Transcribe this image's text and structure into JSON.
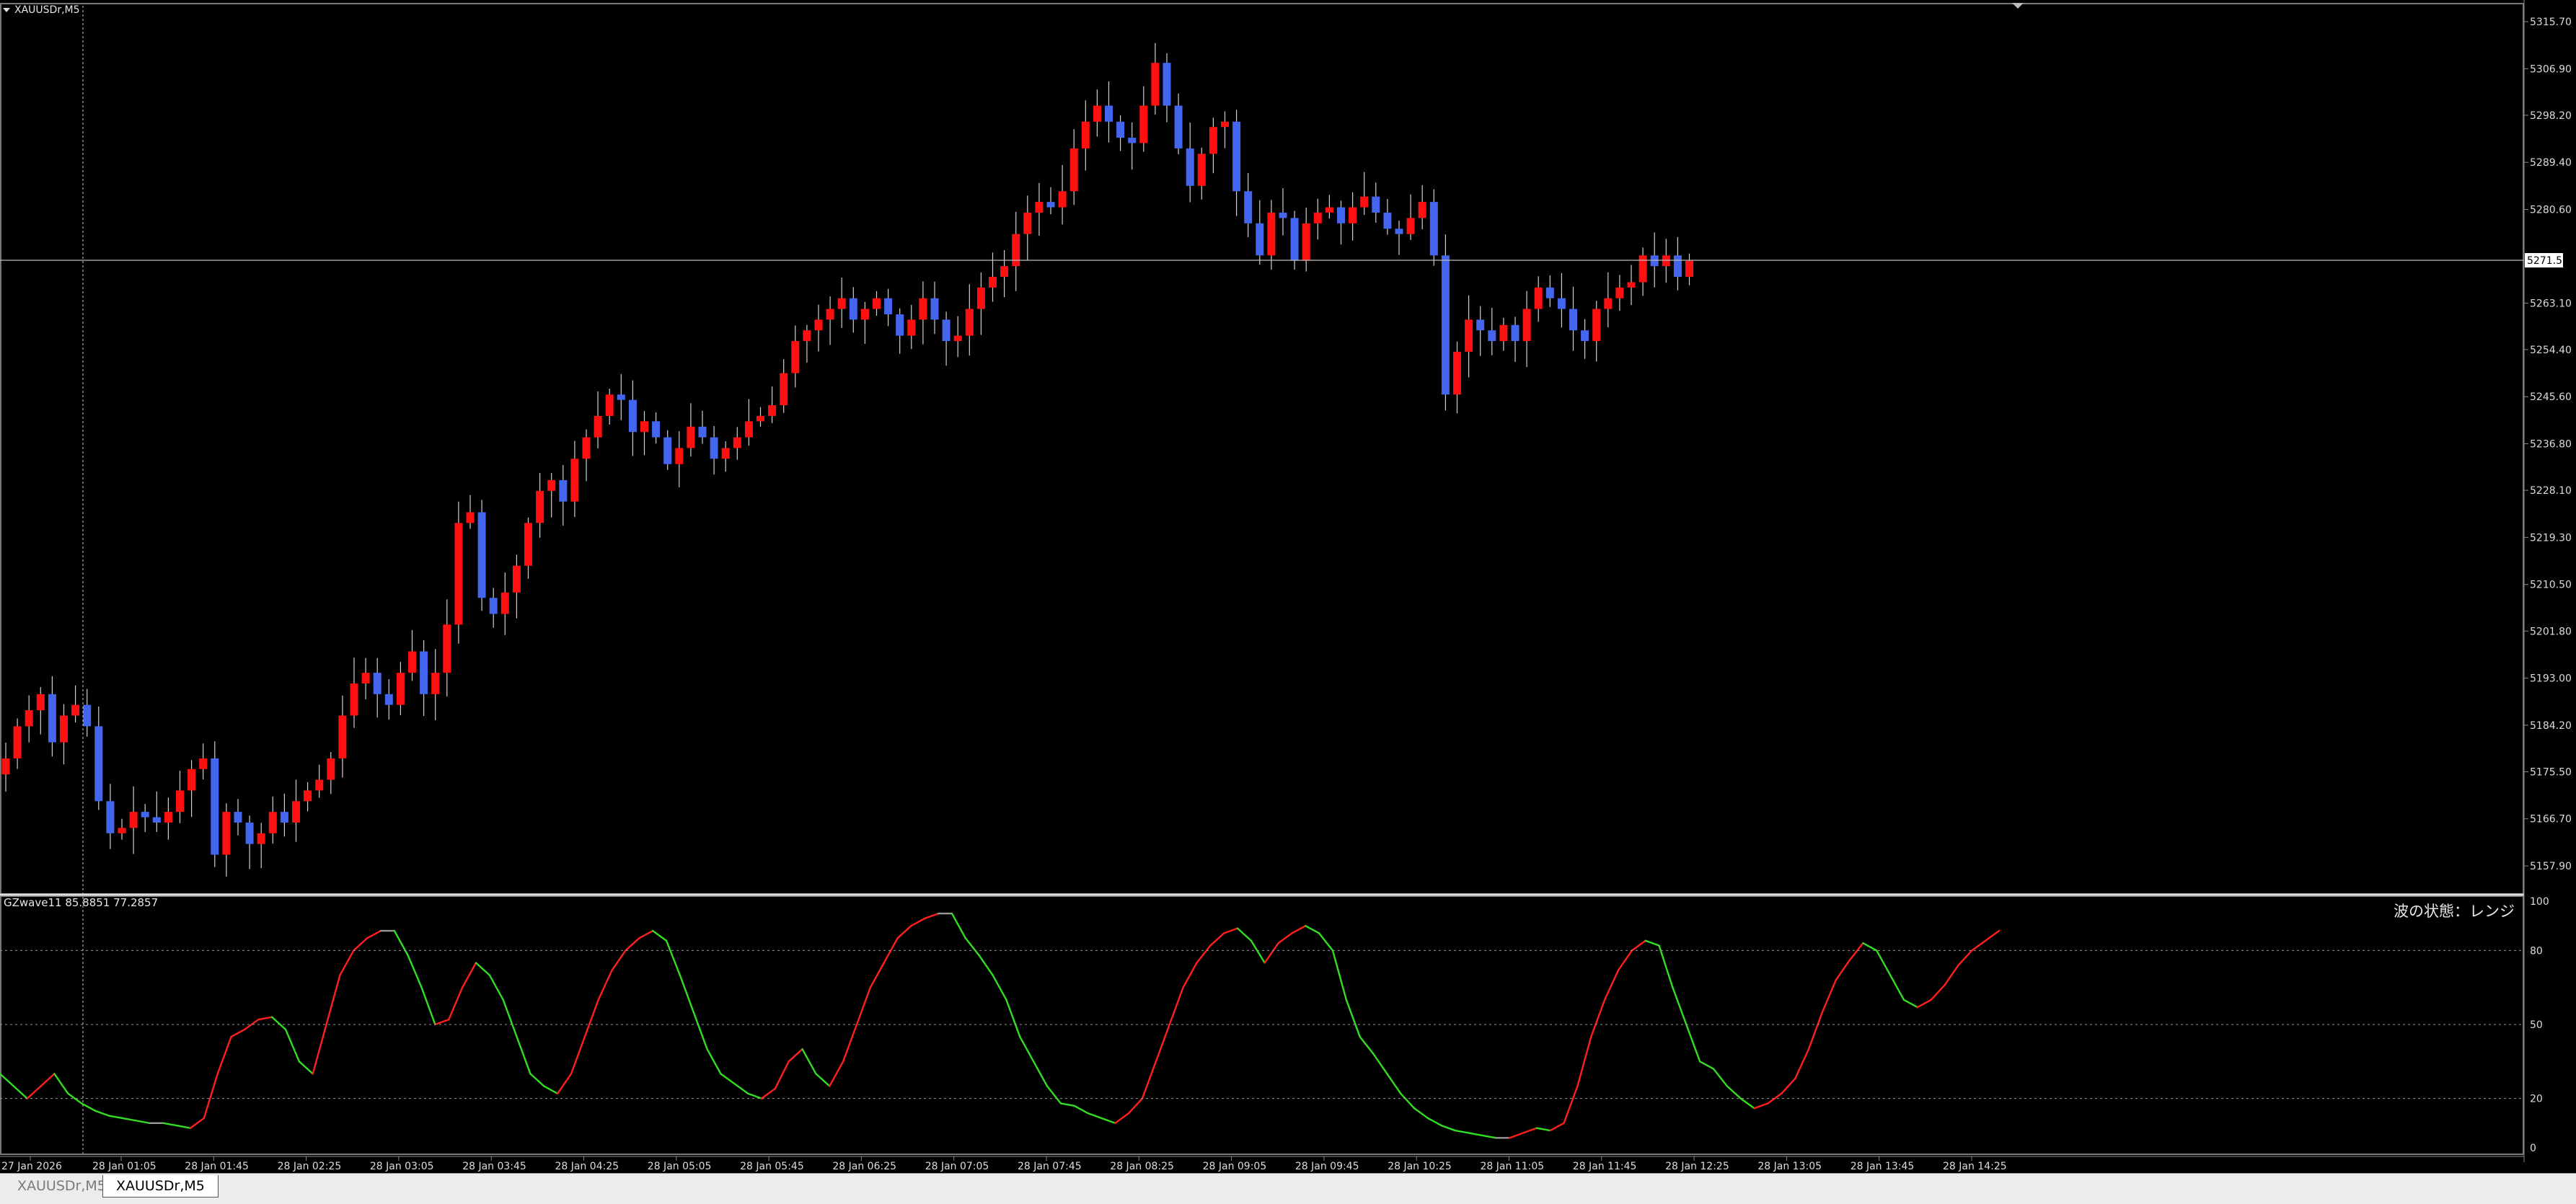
{
  "symbol_label": "XAUUSDr,M5",
  "indicator_label": "GZwave11 85.8851 77.2857",
  "wave_status": "波の状態：レンジ",
  "current_price_label": "5271.56",
  "price_axis": [
    "5315.70",
    "5306.90",
    "5298.20",
    "5289.40",
    "5280.60",
    "5263.10",
    "5254.40",
    "5245.60",
    "5236.80",
    "5228.10",
    "5219.30",
    "5210.50",
    "5201.80",
    "5193.00",
    "5184.20",
    "5175.50",
    "5166.70",
    "5157.90"
  ],
  "indicator_axis": [
    "100",
    "80",
    "50",
    "20",
    "0"
  ],
  "time_axis": [
    "27 Jan 2026",
    "28 Jan 01:05",
    "28 Jan 01:45",
    "28 Jan 02:25",
    "28 Jan 03:05",
    "28 Jan 03:45",
    "28 Jan 04:25",
    "28 Jan 05:05",
    "28 Jan 05:45",
    "28 Jan 06:25",
    "28 Jan 07:05",
    "28 Jan 07:45",
    "28 Jan 08:25",
    "28 Jan 09:05",
    "28 Jan 09:45",
    "28 Jan 10:25",
    "28 Jan 11:05",
    "28 Jan 11:45",
    "28 Jan 12:25",
    "28 Jan 13:05",
    "28 Jan 13:45",
    "28 Jan 14:25"
  ],
  "tabs": [
    {
      "label": "XAUUSDr,M5",
      "active": false
    },
    {
      "label": "XAUUSDr,M5",
      "active": true
    }
  ],
  "colors": {
    "bull": "#ff1010",
    "bear": "#4466ee",
    "wave_up": "#ff1e1e",
    "wave_down": "#33dd22",
    "wave_flat": "#999999",
    "grid": "#9a9a9a",
    "background": "#000000"
  },
  "chart_data": {
    "type": "candlestick",
    "timeframe": "M5",
    "ylim": [
      5152,
      5321
    ],
    "close_series": [
      5178,
      5184,
      5187,
      5190,
      5181,
      5186,
      5188,
      5184,
      5170,
      5164,
      5165,
      5168,
      5167,
      5166,
      5168,
      5172,
      5176,
      5178,
      5160,
      5168,
      5166,
      5162,
      5164,
      5168,
      5166,
      5170,
      5172,
      5174,
      5178,
      5186,
      5192,
      5194,
      5190,
      5188,
      5194,
      5198,
      5190,
      5194,
      5203,
      5222,
      5224,
      5208,
      5205,
      5209,
      5214,
      5222,
      5228,
      5230,
      5226,
      5234,
      5238,
      5242,
      5246,
      5245,
      5239,
      5241,
      5238,
      5233,
      5236,
      5240,
      5238,
      5234,
      5236,
      5238,
      5241,
      5242,
      5244,
      5250,
      5256,
      5258,
      5260,
      5262,
      5264,
      5260,
      5262,
      5264,
      5261,
      5257,
      5260,
      5264,
      5260,
      5256,
      5257,
      5262,
      5266,
      5268,
      5270,
      5276,
      5280,
      5282,
      5281,
      5284,
      5292,
      5297,
      5300,
      5297,
      5294,
      5293,
      5300,
      5308,
      5300,
      5292,
      5285,
      5291,
      5296,
      5297,
      5284,
      5278,
      5272,
      5280,
      5279,
      5271,
      5278,
      5280,
      5281,
      5278,
      5281,
      5283,
      5280,
      5277,
      5276,
      5279,
      5282,
      5272,
      5246,
      5254,
      5260,
      5258,
      5256,
      5259,
      5256,
      5262,
      5266,
      5264,
      5262,
      5258,
      5256,
      5262,
      5264,
      5266,
      5267,
      5272,
      5270,
      5272,
      5268,
      5271
    ],
    "indicator": {
      "name": "GZwave11",
      "values": [
        85.8851,
        77.2857
      ],
      "ylim": [
        0,
        100
      ],
      "levels": [
        80,
        50,
        20
      ],
      "points": [
        30,
        25,
        20,
        25,
        30,
        22,
        18,
        15,
        13,
        12,
        11,
        10,
        10,
        9,
        8,
        12,
        30,
        45,
        48,
        52,
        53,
        48,
        35,
        30,
        50,
        70,
        80,
        85,
        88,
        88,
        78,
        65,
        50,
        52,
        65,
        75,
        70,
        60,
        45,
        30,
        25,
        22,
        30,
        45,
        60,
        72,
        80,
        85,
        88,
        84,
        70,
        55,
        40,
        30,
        26,
        22,
        20,
        24,
        35,
        40,
        30,
        25,
        35,
        50,
        65,
        75,
        85,
        90,
        93,
        95,
        95,
        85,
        78,
        70,
        60,
        45,
        35,
        25,
        18,
        17,
        14,
        12,
        10,
        14,
        20,
        35,
        50,
        65,
        75,
        82,
        87,
        89,
        84,
        75,
        83,
        87,
        90,
        87,
        80,
        60,
        45,
        38,
        30,
        22,
        16,
        12,
        9,
        7,
        6,
        5,
        4,
        4,
        6,
        8,
        7,
        10,
        25,
        45,
        60,
        72,
        80,
        84,
        82,
        65,
        50,
        35,
        32,
        25,
        20,
        16,
        18,
        22,
        28,
        40,
        55,
        68,
        76,
        83,
        80,
        70,
        60,
        57,
        60,
        66,
        74,
        80,
        84,
        88
      ]
    }
  }
}
